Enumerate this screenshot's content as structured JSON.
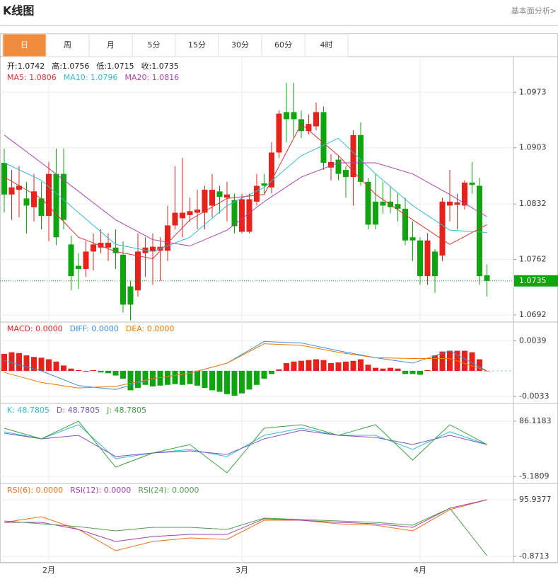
{
  "header": {
    "title": "K线图",
    "link": "基本面分析>"
  },
  "tabs": [
    "日",
    "周",
    "月",
    "5分",
    "15分",
    "30分",
    "60分",
    "4时"
  ],
  "active_tab": 0,
  "chart_data": [
    {
      "type": "candlestick",
      "ohlc_labels": [
        "开:1.0742",
        "高:1.0756",
        "低:1.0715",
        "收:1.0735"
      ],
      "up_color": "#e8221a",
      "down_color": "#0ea50e",
      "ylim": [
        1.0683,
        1.1018
      ],
      "yticks": [
        1.0973,
        1.0903,
        1.0832,
        1.0762,
        1.0692
      ],
      "grid": true,
      "categories": [
        null,
        null,
        null,
        null,
        null,
        null,
        "2月",
        null,
        null,
        null,
        null,
        null,
        null,
        null,
        null,
        null,
        null,
        null,
        null,
        null,
        null,
        null,
        null,
        null,
        null,
        null,
        null,
        null,
        null,
        null,
        null,
        null,
        "3月",
        null,
        null,
        null,
        null,
        null,
        null,
        null,
        null,
        null,
        null,
        null,
        null,
        null,
        null,
        null,
        null,
        null,
        null,
        null,
        null,
        null,
        null,
        null,
        "4月",
        null,
        null,
        null,
        null,
        null,
        null,
        null,
        null,
        null
      ],
      "open": [
        1.0884,
        1.0844,
        1.085,
        1.0839,
        1.0828,
        1.0839,
        1.0817,
        1.087,
        1.087,
        1.0781,
        1.0754,
        1.075,
        1.0772,
        1.0777,
        1.0777,
        1.0777,
        1.0768,
        1.0728,
        1.0723,
        1.077,
        1.0772,
        1.0773,
        1.0773,
        1.0805,
        1.0814,
        1.0818,
        1.0821,
        1.0821,
        1.083,
        1.0848,
        1.084,
        1.0837,
        1.0797,
        1.0797,
        1.0835,
        1.0858,
        1.0853,
        1.0897,
        1.0948,
        1.0948,
        1.0939,
        1.0924,
        1.093,
        1.0948,
        1.0878,
        1.0888,
        1.0875,
        1.0866,
        1.0919,
        1.086,
        1.0835,
        1.0835,
        1.0835,
        1.0832,
        1.0826,
        1.079,
        1.0786,
        1.0741,
        1.0772,
        1.0767,
        1.083,
        1.0831,
        1.083,
        1.0859,
        1.0855,
        1.0742
      ],
      "high": [
        1.0902,
        1.0875,
        1.088,
        1.086,
        1.087,
        1.086,
        1.0885,
        1.0902,
        1.0902,
        1.0792,
        1.077,
        1.0785,
        1.0795,
        1.08,
        1.0795,
        1.08,
        1.0785,
        1.0735,
        1.0795,
        1.079,
        1.0795,
        1.079,
        1.083,
        1.088,
        1.089,
        1.084,
        1.085,
        1.0855,
        1.087,
        1.0855,
        1.086,
        1.0845,
        1.0845,
        1.0845,
        1.087,
        1.087,
        1.091,
        1.095,
        1.0985,
        1.0985,
        1.095,
        1.0945,
        1.096,
        1.0955,
        1.0895,
        1.0893,
        1.088,
        1.0925,
        1.0935,
        1.0865,
        1.087,
        1.086,
        1.0855,
        1.0845,
        1.084,
        1.081,
        1.079,
        1.0795,
        1.0775,
        1.084,
        1.0875,
        1.0845,
        1.0862,
        1.0885,
        1.0865,
        1.0756
      ],
      "low": [
        1.0821,
        1.0812,
        1.0815,
        1.0795,
        1.081,
        1.08,
        1.0785,
        1.078,
        1.08,
        1.0723,
        1.0725,
        1.074,
        1.0748,
        1.077,
        1.076,
        1.075,
        1.0695,
        1.0685,
        1.0715,
        1.074,
        1.073,
        1.0735,
        1.076,
        1.08,
        1.079,
        1.081,
        1.08,
        1.08,
        1.0815,
        1.082,
        1.081,
        1.0795,
        1.0795,
        1.0795,
        1.083,
        1.0845,
        1.0845,
        1.089,
        1.091,
        1.0915,
        1.0915,
        1.092,
        1.0925,
        1.0875,
        1.0862,
        1.0862,
        1.084,
        1.083,
        1.0855,
        1.08,
        1.08,
        1.082,
        1.082,
        1.081,
        1.078,
        1.076,
        1.073,
        1.073,
        1.072,
        1.076,
        1.081,
        1.08,
        1.0825,
        1.0845,
        1.073,
        1.0715
      ],
      "close": [
        1.0844,
        1.0853,
        1.0855,
        1.083,
        1.0848,
        1.0817,
        1.087,
        1.079,
        1.0812,
        1.0741,
        1.075,
        1.0772,
        1.0781,
        1.0783,
        1.0783,
        1.077,
        1.0705,
        1.0705,
        1.0772,
        1.0777,
        1.0778,
        1.0778,
        1.0805,
        1.0821,
        1.0821,
        1.0823,
        1.0825,
        1.085,
        1.085,
        1.0841,
        1.0844,
        1.0804,
        1.0838,
        1.0838,
        1.0855,
        1.0855,
        1.0897,
        1.0946,
        1.0939,
        1.0939,
        1.0924,
        1.0933,
        1.0948,
        1.0884,
        1.0885,
        1.087,
        1.0866,
        1.0919,
        1.086,
        1.0806,
        1.0806,
        1.083,
        1.0828,
        1.0826,
        1.0786,
        1.0786,
        1.0741,
        1.0786,
        1.0741,
        1.0835,
        1.0835,
        1.0834,
        1.0859,
        1.0856,
        1.0741,
        1.0735
      ],
      "last_color": "#0ea50e",
      "x": [
        0,
        5,
        10,
        15,
        20,
        25,
        30,
        35,
        40,
        45,
        50,
        55,
        60,
        65
      ],
      "series": [
        {
          "name": "MA5: 1.0806",
          "color": "#e0312f",
          "values": [
            1.0866,
            1.0839,
            1.079,
            1.0772,
            1.0763,
            1.0812,
            1.0839,
            1.0844,
            1.0933,
            1.0893,
            1.0844,
            1.0812,
            1.0781,
            1.0806
          ]
        },
        {
          "name": "MA10: 1.0796",
          "color": "#33bcd6",
          "values": [
            1.0884,
            1.0862,
            1.0821,
            1.0781,
            1.0772,
            1.079,
            1.083,
            1.0853,
            1.0893,
            1.0915,
            1.087,
            1.083,
            1.0799,
            1.0796
          ]
        },
        {
          "name": "MA20: 1.0816",
          "color": "#b040b0",
          "values": [
            1.0919,
            1.0884,
            1.0848,
            1.0812,
            1.0787,
            1.0779,
            1.0799,
            1.0835,
            1.0866,
            1.0884,
            1.0884,
            1.087,
            1.0844,
            1.0816
          ]
        }
      ]
    },
    {
      "type": "macd",
      "ylim": [
        -0.0042,
        0.0063
      ],
      "yticks": [
        0.0039,
        -0.0033
      ],
      "histogram": {
        "name": "MACD: 0.0000",
        "color": "#e8221a",
        "up_color": "#e8221a",
        "down_color": "#0ea50e",
        "values": [
          0.0022,
          0.0024,
          0.0023,
          0.002,
          0.0018,
          0.0017,
          0.0015,
          0.0012,
          0.0007,
          0.0003,
          0.0001,
          -0.0001,
          0.0001,
          -0.0002,
          -0.0003,
          -0.0006,
          -0.001,
          -0.0025,
          -0.0022,
          -0.0018,
          -0.002,
          -0.0019,
          -0.0018,
          -0.0017,
          -0.0018,
          -0.0017,
          -0.0019,
          -0.0022,
          -0.0025,
          -0.0027,
          -0.003,
          -0.0032,
          -0.0029,
          -0.0024,
          -0.0018,
          -0.001,
          -0.0004,
          0.0002,
          0.001,
          0.0012,
          0.0013,
          0.0014,
          0.0015,
          0.0014,
          0.001,
          0.0011,
          0.0012,
          0.0013,
          0.0015,
          0.0008,
          0.0004,
          0.0003,
          0.0004,
          0.0003,
          -0.0004,
          -0.0004,
          -0.0005,
          0.0001,
          0.002,
          0.0025,
          0.0026,
          0.0026,
          0.0026,
          0.0024,
          0.0015,
          0.0
        ]
      },
      "x": [
        0,
        5,
        10,
        15,
        20,
        25,
        30,
        35,
        40,
        45,
        50,
        55,
        60,
        65
      ],
      "series": [
        {
          "name": "DIFF: 0.0000",
          "color": "#3c8ce0",
          "values": [
            0.0013,
            0.0,
            -0.0019,
            -0.0024,
            -0.001,
            -0.0003,
            0.001,
            0.0038,
            0.0036,
            0.0026,
            0.0017,
            0.001,
            0.0026,
            0.0
          ]
        },
        {
          "name": "DEA: 0.0000",
          "color": "#f07800",
          "values": [
            -0.0002,
            -0.0015,
            -0.0022,
            -0.002,
            -0.001,
            -0.0003,
            0.001,
            0.0035,
            0.0033,
            0.0024,
            0.0017,
            0.0016,
            0.0016,
            0.0
          ]
        }
      ]
    },
    {
      "type": "line",
      "ylim": [
        -16.9,
        115.4
      ],
      "yticks": [
        86.1183,
        -5.1809
      ],
      "x": [
        0,
        5,
        10,
        15,
        20,
        25,
        30,
        35,
        40,
        45,
        50,
        55,
        60,
        65
      ],
      "series": [
        {
          "name": "K: 48.7805",
          "color": "#33bcd6",
          "values": [
            68.6,
            56.9,
            80.3,
            24.1,
            33.4,
            39.3,
            27.6,
            62.7,
            74.4,
            62.7,
            62.7,
            39.3,
            68.6,
            47.5
          ]
        },
        {
          "name": "D: 48.7805",
          "color": "#8050c0",
          "values": [
            66.2,
            56.9,
            62.7,
            27.6,
            33.4,
            37.0,
            31.1,
            56.9,
            70.9,
            62.7,
            59.2,
            47.5,
            62.7,
            47.5
          ]
        },
        {
          "name": "J: 48.7805",
          "color": "#40a040",
          "values": [
            74.4,
            56.9,
            86.1,
            10.0,
            33.4,
            47.5,
            0.7,
            74.4,
            80.3,
            62.7,
            80.3,
            21.7,
            80.3,
            47.5
          ]
        }
      ]
    },
    {
      "type": "line",
      "ylim": [
        -11.8,
        123.8
      ],
      "yticks": [
        95.9377,
        -0.8713
      ],
      "x": [
        0,
        5,
        10,
        15,
        20,
        25,
        30,
        35,
        40,
        45,
        50,
        55,
        60,
        65
      ],
      "series": [
        {
          "name": "RSI(6): 0.0000",
          "color": "#f07020",
          "values": [
            57.2,
            66.9,
            45.1,
            8.8,
            24.5,
            30.6,
            28.2,
            60.8,
            60.8,
            54.8,
            52.4,
            42.7,
            79.0,
            95.9
          ]
        },
        {
          "name": "RSI(12): 0.0000",
          "color": "#a040b0",
          "values": [
            57.2,
            57.2,
            45.1,
            24.5,
            33.0,
            36.6,
            36.6,
            63.3,
            60.8,
            57.2,
            54.8,
            48.7,
            81.4,
            95.9
          ]
        },
        {
          "name": "RSI(24): 0.0000",
          "color": "#50a050",
          "values": [
            59.6,
            54.8,
            49.9,
            42.7,
            48.7,
            48.7,
            45.1,
            64.5,
            62.1,
            59.6,
            57.2,
            52.4,
            81.4,
            0.3
          ]
        }
      ]
    }
  ]
}
